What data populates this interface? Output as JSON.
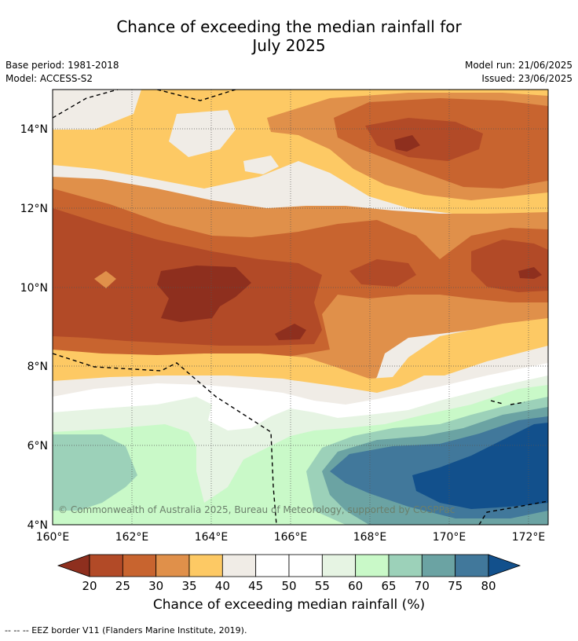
{
  "title_line1": "Chance of exceeding the median rainfall for",
  "title_line2": "July 2025",
  "base_period": "Base period: 1981-2018",
  "model": "Model: ACCESS-S2",
  "model_run": "Model run: 21/06/2025",
  "issued": "Issued: 23/06/2025",
  "copyright": "© Commonwealth of Australia 2025, Bureau of Meteorology, supported by COSPPac",
  "colorbar_title": "Chance of exceeding median rainfall (%)",
  "footer": "-- -- -- EEZ border V11 (Flanders Marine Institute, 2019).",
  "lon_ticks": [
    "160°E",
    "162°E",
    "164°E",
    "166°E",
    "168°E",
    "170°E",
    "172°E"
  ],
  "lat_ticks": [
    "14°N",
    "12°N",
    "10°N",
    "8°N",
    "6°N",
    "4°N"
  ],
  "colorbar": {
    "ticks": [
      "20",
      "25",
      "30",
      "35",
      "40",
      "45",
      "50",
      "55",
      "60",
      "65",
      "70",
      "75",
      "80"
    ],
    "colors": [
      "#b24a27",
      "#c8642f",
      "#e0904a",
      "#fdc964",
      "#f0ece6",
      "#ffffff",
      "#ffffff",
      "#e6f4e3",
      "#c9f9c8",
      "#9cd1b9",
      "#6ba3a3",
      "#41789b"
    ],
    "under_color": "#8e2f1e",
    "over_color": "#12508c"
  },
  "map_extent": {
    "lon": [
      160,
      172.5
    ],
    "lat": [
      4,
      15
    ]
  }
}
